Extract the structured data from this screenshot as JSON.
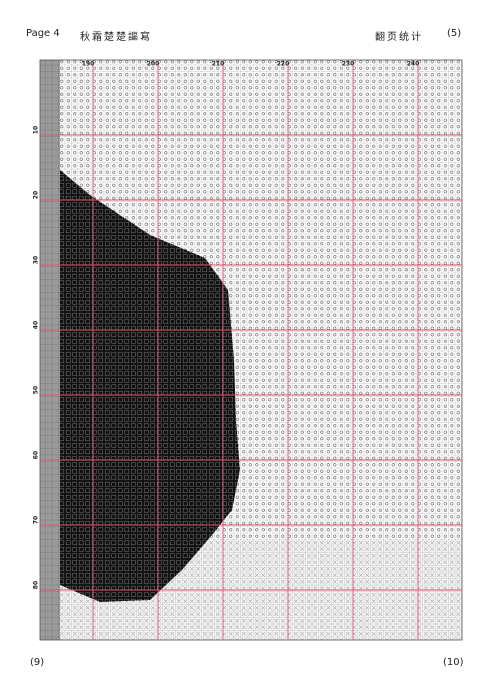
{
  "header": {
    "page": "Page 4",
    "title": "秋霜楚楚謳寫",
    "right_title": "翻页统计",
    "page_number": "(5)"
  },
  "column_labels": [
    "190",
    "200",
    "210",
    "220",
    "230",
    "240"
  ],
  "row_labels": [
    "10",
    "20",
    "30",
    "40",
    "50",
    "60",
    "70",
    "80"
  ],
  "footer": {
    "left": "(9)",
    "right": "(10)"
  }
}
